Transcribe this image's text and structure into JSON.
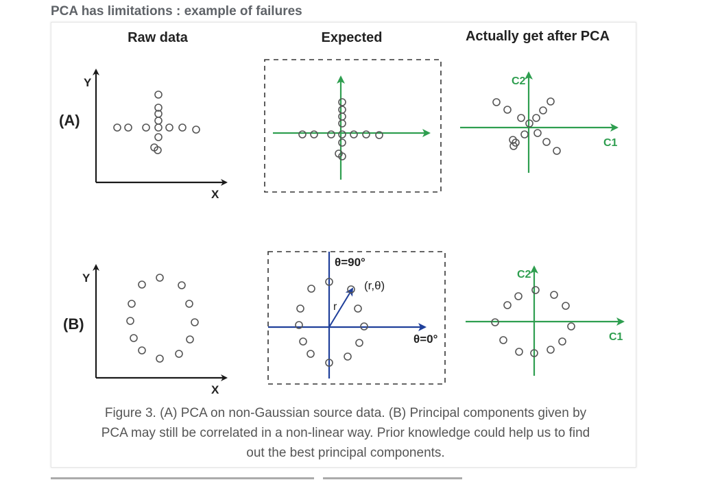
{
  "heading": "PCA has limitations : example of failures",
  "column_titles": {
    "raw": "Raw data",
    "expected": "Expected",
    "actual": "Actually get after PCA"
  },
  "row_labels": {
    "a": "(A)",
    "b": "(B)"
  },
  "axis_labels": {
    "y": "Y",
    "x": "X",
    "c1": "C1",
    "c2": "C2",
    "theta90": "θ=90°",
    "theta0": "θ=0°",
    "r": "r",
    "rtheta": "(r,θ)"
  },
  "colors": {
    "axis_black": "#1a1a1a",
    "axis_green": "#2e9e4f",
    "axis_blue": "#1f3f9a",
    "point": "#555555",
    "text": "#222222",
    "caption": "#555555",
    "heading": "#5f6368"
  },
  "caption": {
    "line1": "Figure 3. (A) PCA on non-Gaussian source data. (B) Principal components given by",
    "line2": "PCA may still be correlated in a non-linear way. Prior knowledge could help us to find",
    "line3": "out the best principal components."
  }
}
